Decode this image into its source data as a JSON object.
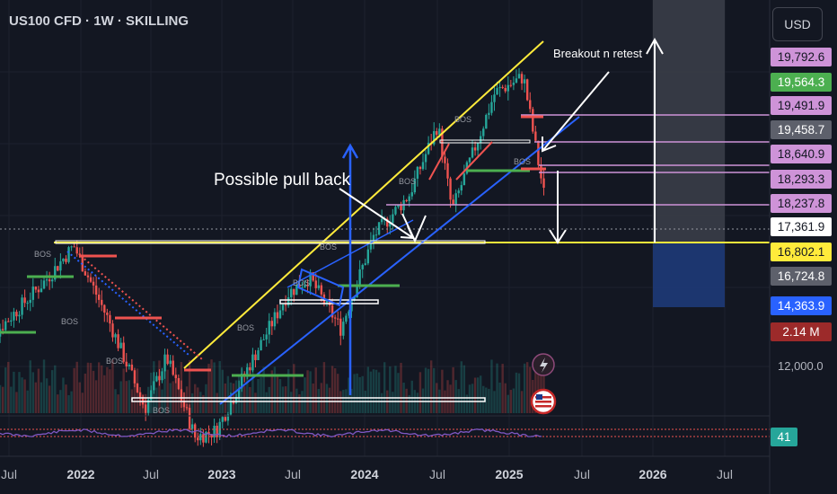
{
  "header": {
    "title": "US100 CFD · 1W · SKILLING",
    "currency": "USD"
  },
  "price_tags": [
    {
      "label": "19,792.6",
      "bg": "#ce93d8",
      "fg": "#131722",
      "top": 53
    },
    {
      "label": "19,564.3",
      "bg": "#4caf50",
      "fg": "#ffffff",
      "top": 81
    },
    {
      "label": "19,491.9",
      "bg": "#ce93d8",
      "fg": "#131722",
      "top": 107
    },
    {
      "label": "19,458.7",
      "bg": "#5d606b",
      "fg": "#ffffff",
      "top": 134
    },
    {
      "label": "18,640.9",
      "bg": "#ce93d8",
      "fg": "#131722",
      "top": 161
    },
    {
      "label": "18,293.3",
      "bg": "#ce93d8",
      "fg": "#131722",
      "top": 189
    },
    {
      "label": "18,237.8",
      "bg": "#ce93d8",
      "fg": "#131722",
      "top": 216
    },
    {
      "label": "17,361.9",
      "bg": "#ffffff",
      "fg": "#131722",
      "top": 242
    },
    {
      "label": "16,802.1",
      "bg": "#ffeb3b",
      "fg": "#131722",
      "top": 270
    },
    {
      "label": "16,724.8",
      "bg": "#5d606b",
      "fg": "#ffffff",
      "top": 297
    },
    {
      "label": "14,363.9",
      "bg": "#2962ff",
      "fg": "#ffffff",
      "top": 330
    },
    {
      "label": "2.14 M",
      "bg": "#9c2a2a",
      "fg": "#ffffff",
      "top": 359
    }
  ],
  "axis": {
    "y_tick": "12,000.0",
    "rsi_value": "41",
    "rsi_bg": "#26a69a"
  },
  "annotations": {
    "breakout": "Breakout n retest",
    "pullback": "Possible pull back",
    "bos": "BOS"
  },
  "colors": {
    "bull": "#26a69a",
    "bear": "#ef5350",
    "channel_top": "#ffeb3b",
    "channel_bottom": "#2962ff",
    "zone": "#ce93d8",
    "target_zone": "#3a3d48",
    "stop_zone": "#1e3a78"
  },
  "chart_data": {
    "type": "candlestick",
    "symbol": "US100 CFD",
    "interval": "1W",
    "x_ticks": [
      "Jul",
      "2022",
      "Jul",
      "2023",
      "Jul",
      "2024",
      "Jul",
      "2025",
      "Jul",
      "2026",
      "Jul"
    ],
    "y_ticks": [
      12000
    ],
    "levels": [
      19792.6,
      19564.3,
      19491.9,
      19458.7,
      18640.9,
      18293.3,
      18237.8,
      17361.9,
      16802.1,
      16724.8,
      14363.9
    ],
    "volume_last": "2.14 M",
    "rsi_last": 41,
    "anchors": [
      {
        "t": 2021.3,
        "p": 13500
      },
      {
        "t": 2021.75,
        "p": 15600
      },
      {
        "t": 2021.95,
        "p": 16700
      },
      {
        "t": 2022.2,
        "p": 14300
      },
      {
        "t": 2022.45,
        "p": 11600
      },
      {
        "t": 2022.6,
        "p": 13200
      },
      {
        "t": 2022.8,
        "p": 10700
      },
      {
        "t": 2022.95,
        "p": 10900
      },
      {
        "t": 2023.15,
        "p": 12700
      },
      {
        "t": 2023.45,
        "p": 15200
      },
      {
        "t": 2023.6,
        "p": 15700
      },
      {
        "t": 2023.82,
        "p": 14100
      },
      {
        "t": 2024.05,
        "p": 17000
      },
      {
        "t": 2024.3,
        "p": 18300
      },
      {
        "t": 2024.5,
        "p": 20500
      },
      {
        "t": 2024.6,
        "p": 17800
      },
      {
        "t": 2024.9,
        "p": 21500
      },
      {
        "t": 2025.1,
        "p": 22000
      },
      {
        "t": 2025.2,
        "p": 19400
      },
      {
        "t": 2025.26,
        "p": 17900
      }
    ]
  }
}
